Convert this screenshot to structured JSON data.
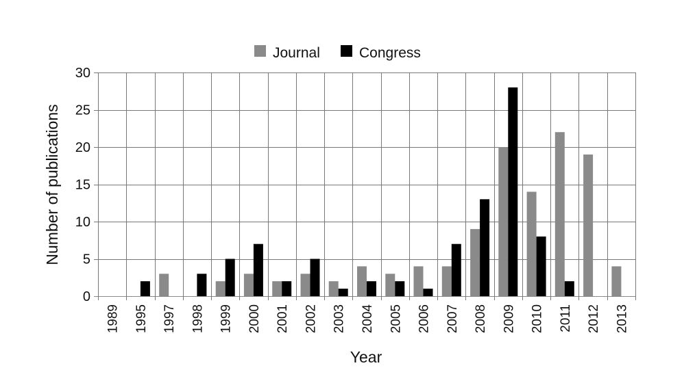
{
  "chart_data": {
    "type": "bar",
    "title": "",
    "xlabel": "Year",
    "ylabel": "Number of publications",
    "ylim": [
      0,
      30
    ],
    "yticks": [
      0,
      5,
      10,
      15,
      20,
      25,
      30
    ],
    "grid": true,
    "legend_position": "top-center",
    "categories": [
      "1989",
      "1995",
      "1997",
      "1998",
      "1999",
      "2000",
      "2001",
      "2002",
      "2003",
      "2004",
      "2005",
      "2006",
      "2007",
      "2008",
      "2009",
      "2010",
      "2011",
      "2012",
      "2013"
    ],
    "series": [
      {
        "name": "Journal",
        "color": "#8a8a8a",
        "values": [
          0,
          0,
          3,
          0,
          2,
          3,
          2,
          3,
          2,
          4,
          3,
          4,
          4,
          9,
          20,
          14,
          22,
          19,
          4
        ]
      },
      {
        "name": "Congress",
        "color": "#000000",
        "values": [
          0,
          2,
          0,
          3,
          5,
          7,
          2,
          5,
          1,
          2,
          2,
          1,
          7,
          13,
          28,
          8,
          2,
          0,
          0
        ]
      }
    ]
  }
}
